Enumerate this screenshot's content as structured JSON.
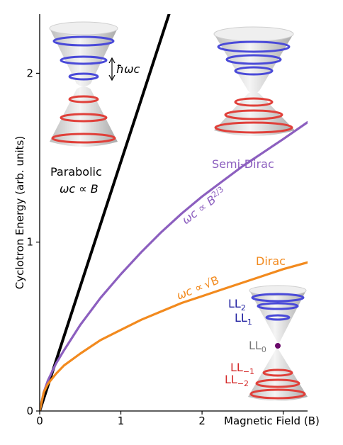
{
  "chart_data": {
    "type": "line",
    "title": "",
    "xlabel": "Magnetic Field (B)",
    "ylabel": "Cyclotron Energy (arb. units)",
    "xlim": [
      0,
      3.3
    ],
    "ylim": [
      0,
      2.35
    ],
    "xticks": [
      0,
      1,
      2,
      3
    ],
    "xtick_labels": [
      "0",
      "1",
      "2",
      ""
    ],
    "yticks": [
      0,
      1,
      2
    ],
    "ytick_labels": [
      "0",
      "1",
      "2"
    ],
    "grid": false,
    "series": [
      {
        "name": "Parabolic",
        "law": "ωc ∝ B",
        "color": "#000000",
        "x": [
          0,
          0.2,
          0.4,
          0.6,
          0.8,
          1.0,
          1.2,
          1.4,
          1.6
        ],
        "y": [
          0,
          0.295,
          0.59,
          0.885,
          1.18,
          1.475,
          1.77,
          2.065,
          2.36
        ]
      },
      {
        "name": "Semi-Dirac",
        "law": "ωc ∝ B2/3",
        "color": "#8c5fbf",
        "x": [
          0,
          0.05,
          0.1,
          0.2,
          0.3,
          0.5,
          0.75,
          1.0,
          1.25,
          1.5,
          1.75,
          2.0,
          2.25,
          2.5,
          2.75,
          3.0,
          3.3
        ],
        "y": [
          0,
          0.11,
          0.18,
          0.28,
          0.36,
          0.51,
          0.67,
          0.81,
          0.94,
          1.06,
          1.17,
          1.27,
          1.36,
          1.45,
          1.53,
          1.61,
          1.71
        ]
      },
      {
        "name": "Dirac",
        "law": "ωc ∝ √B",
        "color": "#f28a1e",
        "x": [
          0,
          0.05,
          0.1,
          0.2,
          0.3,
          0.5,
          0.75,
          1.0,
          1.25,
          1.5,
          1.75,
          2.0,
          2.25,
          2.5,
          2.75,
          3.0,
          3.3
        ],
        "y": [
          0,
          0.11,
          0.16,
          0.22,
          0.27,
          0.34,
          0.42,
          0.48,
          0.54,
          0.59,
          0.64,
          0.68,
          0.72,
          0.76,
          0.8,
          0.84,
          0.88
        ]
      }
    ]
  },
  "annotations": {
    "parabolic_name": "Parabolic",
    "parabolic_law_main": "ωc ∝ B",
    "semi_dirac_name": "Semi-Dirac",
    "semi_dirac_law_main": "ωc ∝ B",
    "semi_dirac_law_exp": "2/3",
    "dirac_name": "Dirac",
    "dirac_law_main": "ωc ∝",
    "dirac_law_root": "√B",
    "hbar_omega": "ħωc",
    "ll_labels": [
      "LL2",
      "LL1",
      "LL0",
      "LL−1",
      "LL−2"
    ],
    "ll_labels_main": [
      "LL",
      "LL",
      "LL",
      "LL",
      "LL"
    ],
    "ll_labels_sub": [
      "2",
      "1",
      "0",
      "−1",
      "−2"
    ]
  },
  "colors": {
    "parabolic": "#000000",
    "semi_dirac": "#8c5fbf",
    "dirac": "#f28a1e",
    "level_pos": "#4a4ad8",
    "level_neg": "#e0403a",
    "ll_label_pos": "#1f1fa0",
    "ll_label_neg": "#d42a2a",
    "ll_label_zero": "#777777",
    "cone": "#d8d8d8"
  }
}
